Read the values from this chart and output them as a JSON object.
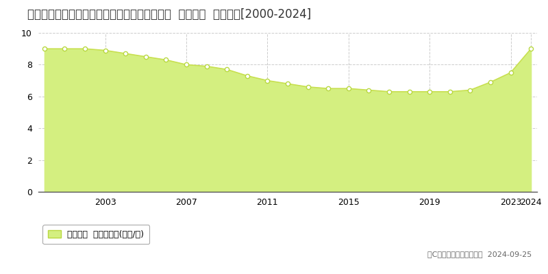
{
  "title": "北海道中川郡幕別町札内あかしや町４７番２３  公示地価  地価推移[2000-2024]",
  "years": [
    2000,
    2001,
    2002,
    2003,
    2004,
    2005,
    2006,
    2007,
    2008,
    2009,
    2010,
    2011,
    2012,
    2013,
    2014,
    2015,
    2016,
    2017,
    2018,
    2019,
    2020,
    2021,
    2022,
    2023,
    2024
  ],
  "values": [
    9.0,
    9.0,
    9.0,
    8.9,
    8.7,
    8.5,
    8.3,
    8.0,
    7.9,
    7.7,
    7.3,
    7.0,
    6.8,
    6.6,
    6.5,
    6.5,
    6.4,
    6.3,
    6.3,
    6.3,
    6.3,
    6.4,
    6.9,
    7.5,
    9.0
  ],
  "ylim": [
    0,
    10
  ],
  "yticks": [
    0,
    2,
    4,
    6,
    8,
    10
  ],
  "xtick_labels": [
    "2003",
    "2007",
    "2011",
    "2015",
    "2019",
    "2023",
    "2024"
  ],
  "xtick_positions": [
    2003,
    2007,
    2011,
    2015,
    2019,
    2023,
    2024
  ],
  "fill_color": "#d4ef80",
  "line_color": "#c8e050",
  "marker_color": "#ffffff",
  "marker_edge_color": "#b8d840",
  "grid_color": "#cccccc",
  "bg_color": "#ffffff",
  "plot_bg_color": "#ffffff",
  "legend_label": "公示地価  平均坪単価(万円/坪)",
  "legend_marker_color": "#d4ef80",
  "legend_edge_color": "#b8d840",
  "copyright_text": "（C）土地価格ドットコム  2024-09-25",
  "title_fontsize": 12,
  "axis_fontsize": 9,
  "legend_fontsize": 9,
  "copyright_fontsize": 8
}
